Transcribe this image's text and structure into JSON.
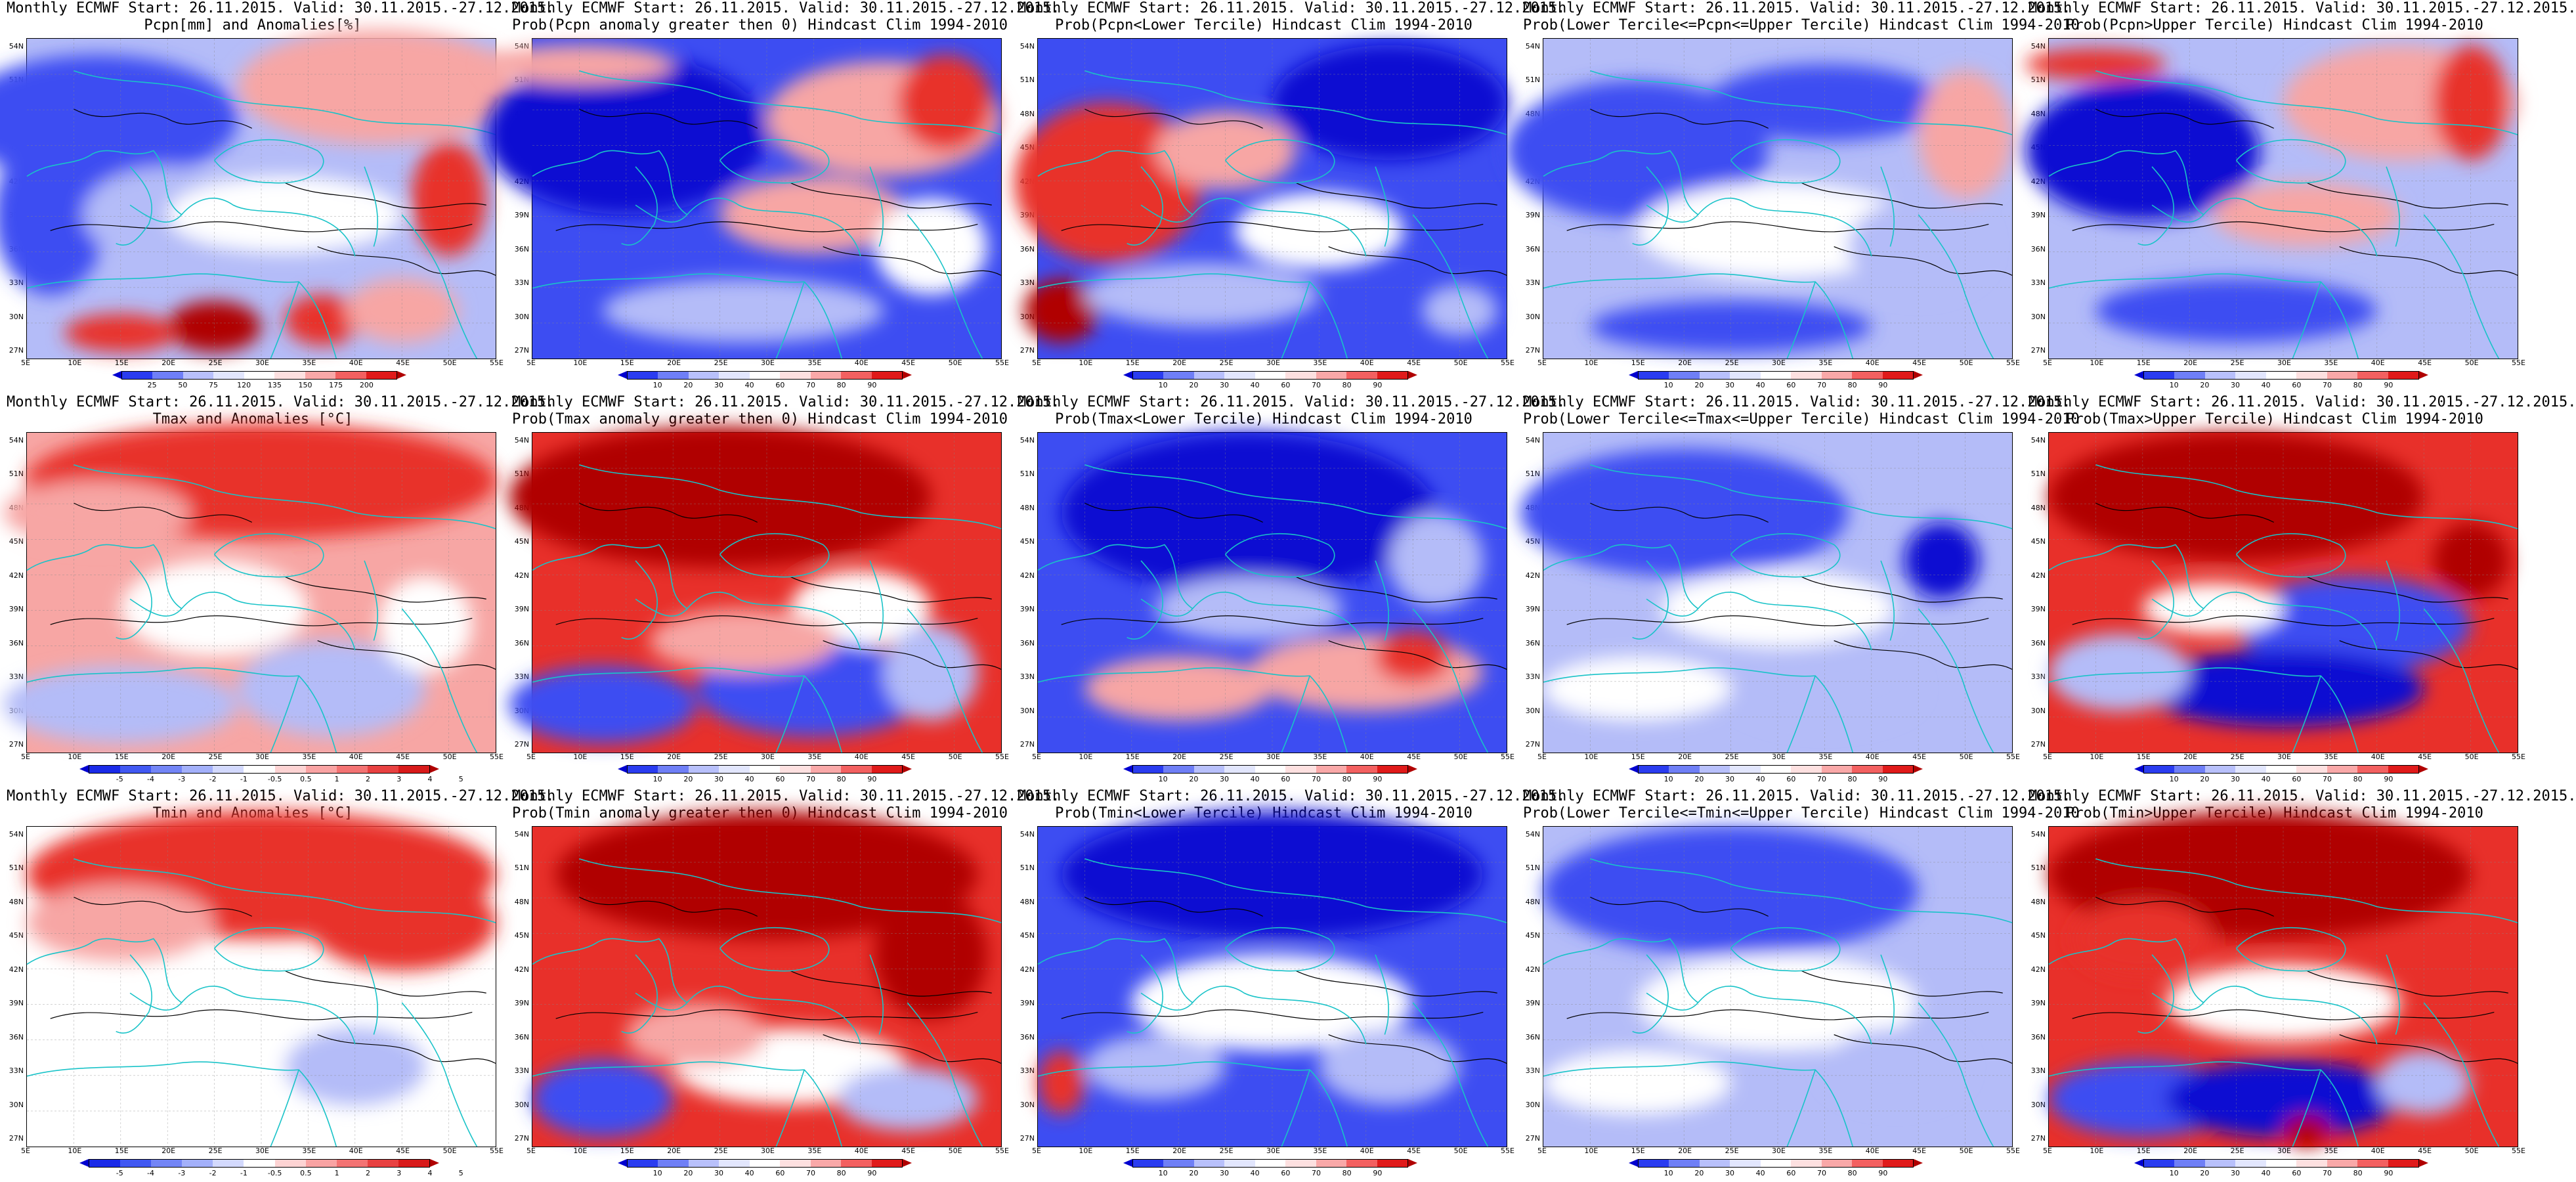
{
  "rows": [
    {
      "panels": [
        {
          "title1": "Monthly ECMWF Start: 26.11.2015. Valid: 30.11.2015.-27.12.2015.",
          "title2": "Pcpn[mm] and Anomalies[%]",
          "colorbar": "anom_pcpn",
          "pattern": "pcpn_anom"
        },
        {
          "title1": "Monthly ECMWF Start: 26.11.2015. Valid: 30.11.2015.-27.12.2015.",
          "title2": "Prob(Pcpn anomaly greater then 0) Hindcast Clim 1994-2010",
          "colorbar": "prob",
          "pattern": "pcpn_pos"
        },
        {
          "title1": "Monthly ECMWF Start: 26.11.2015. Valid: 30.11.2015.-27.12.2015.",
          "title2": "Prob(Pcpn<Lower Tercile) Hindcast Clim 1994-2010",
          "colorbar": "prob",
          "pattern": "pcpn_low"
        },
        {
          "title1": "Monthly ECMWF Start: 26.11.2015. Valid: 30.11.2015.-27.12.2015.",
          "title2": "Prob(Lower Tercile<=Pcpn<=Upper Tercile) Hindcast Clim 1994-2010",
          "colorbar": "prob",
          "pattern": "pcpn_mid"
        },
        {
          "title1": "Monthly ECMWF Start: 26.11.2015. Valid: 30.11.2015.-27.12.2015.",
          "title2": "Prob(Pcpn>Upper Tercile) Hindcast Clim 1994-2010",
          "colorbar": "prob",
          "pattern": "pcpn_up"
        }
      ]
    },
    {
      "panels": [
        {
          "title1": "Monthly ECMWF Start: 26.11.2015. Valid: 30.11.2015.-27.12.2015.",
          "title2": "Tmax and Anomalies [°C]",
          "colorbar": "anom_temp",
          "pattern": "tmax_anom"
        },
        {
          "title1": "Monthly ECMWF Start: 26.11.2015. Valid: 30.11.2015.-27.12.2015.",
          "title2": "Prob(Tmax anomaly greater then 0) Hindcast Clim 1994-2010",
          "colorbar": "prob",
          "pattern": "tmax_pos"
        },
        {
          "title1": "Monthly ECMWF Start: 26.11.2015. Valid: 30.11.2015.-27.12.2015.",
          "title2": "Prob(Tmax<Lower Tercile) Hindcast Clim 1994-2010",
          "colorbar": "prob",
          "pattern": "tmax_low"
        },
        {
          "title1": "Monthly ECMWF Start: 26.11.2015. Valid: 30.11.2015.-27.12.2015.",
          "title2": "Prob(Lower Tercile<=Tmax<=Upper Tercile) Hindcast Clim 1994-2010",
          "colorbar": "prob",
          "pattern": "tmax_mid"
        },
        {
          "title1": "Monthly ECMWF Start: 26.11.2015. Valid: 30.11.2015.-27.12.2015.",
          "title2": "Prob(Tmax>Upper Tercile) Hindcast Clim 1994-2010",
          "colorbar": "prob",
          "pattern": "tmax_up"
        }
      ]
    },
    {
      "panels": [
        {
          "title1": "Monthly ECMWF Start: 26.11.2015. Valid: 30.11.2015.-27.12.2015.",
          "title2": "Tmin and Anomalies [°C]",
          "colorbar": "anom_temp",
          "pattern": "tmin_anom"
        },
        {
          "title1": "Monthly ECMWF Start: 26.11.2015. Valid: 30.11.2015.-27.12.2015.",
          "title2": "Prob(Tmin anomaly greater then 0) Hindcast Clim 1994-2010",
          "colorbar": "prob",
          "pattern": "tmin_pos"
        },
        {
          "title1": "Monthly ECMWF Start: 26.11.2015. Valid: 30.11.2015.-27.12.2015.",
          "title2": "Prob(Tmin<Lower Tercile) Hindcast Clim 1994-2010",
          "colorbar": "prob",
          "pattern": "tmin_low"
        },
        {
          "title1": "Monthly ECMWF Start: 26.11.2015. Valid: 30.11.2015.-27.12.2015.",
          "title2": "Prob(Lower Tercile<=Tmin<=Upper Tercile) Hindcast Clim 1994-2010",
          "colorbar": "prob",
          "pattern": "tmin_mid"
        },
        {
          "title1": "Monthly ECMWF Start: 26.11.2015. Valid: 30.11.2015.-27.12.2015.",
          "title2": "Prob(Tmin>Upper Tercile) Hindcast Clim 1994-2010",
          "colorbar": "prob",
          "pattern": "tmin_up"
        }
      ]
    }
  ],
  "lat_labels": [
    "54N",
    "51N",
    "48N",
    "45N",
    "42N",
    "39N",
    "36N",
    "33N",
    "30N",
    "27N"
  ],
  "lon_labels": [
    "5E",
    "10E",
    "15E",
    "20E",
    "25E",
    "30E",
    "35E",
    "40E",
    "45E",
    "50E",
    "55E"
  ],
  "colorbars": {
    "anom_pcpn": {
      "ticks": [
        "25",
        "50",
        "75",
        "120",
        "135",
        "150",
        "175",
        "200"
      ],
      "colors": [
        "#0000d0",
        "#2a3cf0",
        "#6f7ff6",
        "#b8c0fb",
        "#e2e6fd",
        "#ffffff",
        "#fde0e0",
        "#f9a8a8",
        "#f36060",
        "#e01a1a",
        "#b00000"
      ]
    },
    "anom_temp": {
      "ticks": [
        "-5",
        "-4",
        "-3",
        "-2",
        "-1",
        "-0.5",
        "0.5",
        "1",
        "2",
        "3",
        "4",
        "5"
      ],
      "colors": [
        "#0000d0",
        "#1a2ae8",
        "#4158f2",
        "#7385f6",
        "#a3b0fa",
        "#d3d9fd",
        "#ffffff",
        "#fdd3d3",
        "#f9a3a3",
        "#f37373",
        "#e84141",
        "#d81a1a",
        "#b00000"
      ]
    },
    "prob": {
      "ticks": [
        "10",
        "20",
        "30",
        "40",
        "60",
        "70",
        "80",
        "90"
      ],
      "colors": [
        "#0000d0",
        "#2a3cf0",
        "#6f7ff6",
        "#b8c0fb",
        "#e2e6fd",
        "#ffffff",
        "#fde0e0",
        "#f9a8a8",
        "#f36060",
        "#e01a1a",
        "#b00000"
      ]
    }
  },
  "palette": {
    "dark_red": "#b00000",
    "red": "#e8302a",
    "light_red": "#f7a6a4",
    "white": "#ffffff",
    "light_blue": "#b4bcf8",
    "blue": "#3d4df2",
    "dark_blue": "#0a0ad2",
    "coastline": "#19c3c8",
    "contour": "#000000"
  }
}
